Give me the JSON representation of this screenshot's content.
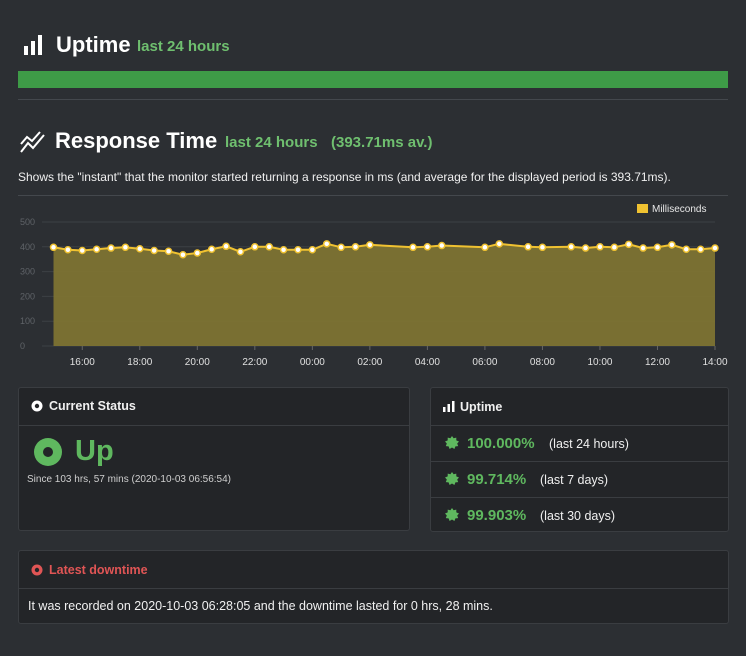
{
  "uptime": {
    "title": "Uptime",
    "period": "last 24 hours"
  },
  "response": {
    "title": "Response Time",
    "period": "last 24 hours",
    "average": "(393.71ms av.)",
    "description": "Shows the \"instant\" that the monitor started returning a response in ms (and average for the displayed period is 393.71ms)."
  },
  "chart_data": {
    "type": "area",
    "legend": "Milliseconds",
    "legend_position": "top-right",
    "ylim": [
      0,
      500
    ],
    "y_ticks": [
      0,
      100,
      200,
      300,
      400,
      500
    ],
    "x_ticks": [
      "16:00",
      "18:00",
      "20:00",
      "22:00",
      "00:00",
      "02:00",
      "04:00",
      "06:00",
      "08:00",
      "10:00",
      "12:00",
      "14:00"
    ],
    "x_hours": [
      15.0,
      15.5,
      16.0,
      16.5,
      17.0,
      17.5,
      18.0,
      18.5,
      19.0,
      19.5,
      20.0,
      20.5,
      21.0,
      21.5,
      22.0,
      22.5,
      23.0,
      23.5,
      24.0,
      24.5,
      25.0,
      25.5,
      26.0,
      27.5,
      28.0,
      28.5,
      30.0,
      30.5,
      31.5,
      32.0,
      33.0,
      33.5,
      34.0,
      34.5,
      35.0,
      35.5,
      36.0,
      36.5,
      37.0,
      37.5,
      38.0
    ],
    "values": [
      398,
      388,
      385,
      390,
      395,
      398,
      392,
      385,
      382,
      368,
      375,
      390,
      402,
      380,
      400,
      400,
      388,
      388,
      388,
      412,
      398,
      400,
      408,
      398,
      400,
      405,
      398,
      412,
      400,
      398,
      400,
      395,
      400,
      398,
      410,
      395,
      398,
      408,
      390,
      390,
      395
    ],
    "color": "#f0c231",
    "fill": "#7d7333"
  },
  "current_status": {
    "title": "Current Status",
    "state": "Up",
    "since": "Since 103 hrs, 57 mins (2020-10-03 06:56:54)"
  },
  "uptime_card": {
    "title": "Uptime",
    "rows": [
      {
        "pct": "100.000%",
        "period": "(last 24 hours)"
      },
      {
        "pct": "99.714%",
        "period": "(last 7 days)"
      },
      {
        "pct": "99.903%",
        "period": "(last 30 days)"
      }
    ]
  },
  "latest_downtime": {
    "title": "Latest downtime",
    "text": "It was recorded on 2020-10-03 06:28:05 and the downtime lasted for 0 hrs, 28 mins."
  },
  "colors": {
    "accent_green": "#5fb85f",
    "danger": "#e05555",
    "chart_line": "#f0c231"
  }
}
